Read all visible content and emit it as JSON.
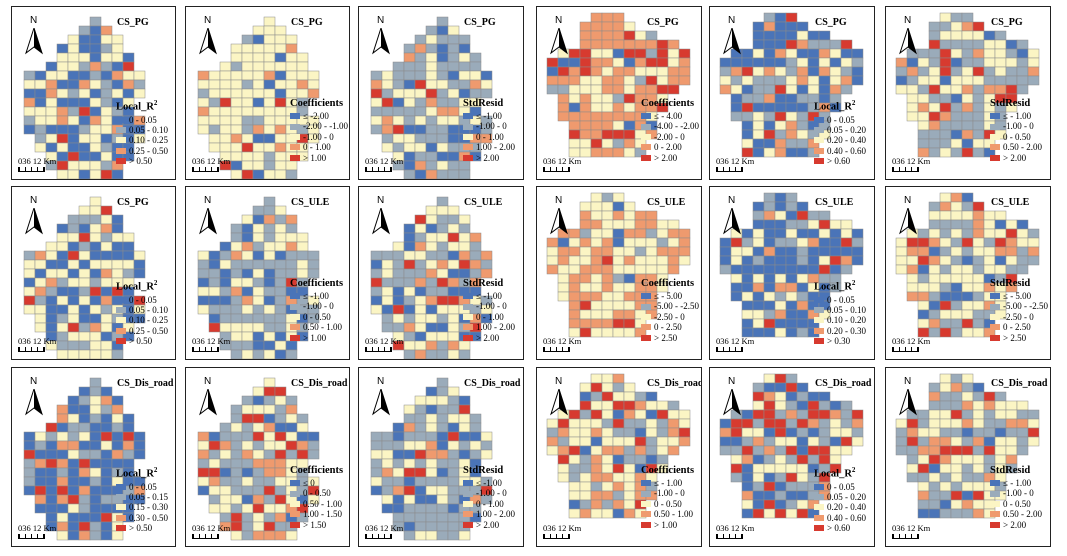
{
  "colors": {
    "dark_blue": "#4a74b8",
    "gray_blue": "#9aabba",
    "light_yellow": "#fbf5c4",
    "orange": "#ef9a6e",
    "red": "#d73a2f"
  },
  "scale_bar": "036 12 Km",
  "north_label": "N",
  "panels": [
    {
      "title": "CS_PG",
      "legend_title": "Local_R",
      "legend_sup": "2",
      "shape": "a",
      "items": [
        "0 - 0.05",
        "0.05 - 0.10",
        "0.10 - 0.25",
        "0.25 - 0.50",
        "> 0.50"
      ]
    },
    {
      "title": "CS_PG",
      "legend_title": "Coefficients",
      "legend_sup": "",
      "shape": "a",
      "items": [
        "≤ -2.00",
        "-2.00 - -1.00",
        "-1.00 - 0",
        "0 - 1.00",
        "> 1.00"
      ]
    },
    {
      "title": "CS_PG",
      "legend_title": "StdResid",
      "legend_sup": "",
      "shape": "a",
      "items": [
        "≤ -1.00",
        "-1.00 - 0",
        "0 - 1.00",
        "1.00 - 2.00",
        "> 2.00"
      ]
    },
    {
      "title": "CS_PG",
      "legend_title": "Coefficients",
      "legend_sup": "",
      "shape": "b",
      "items": [
        "≤ - 4.00",
        "-4.00 - -2.00",
        "-2.00 - 0",
        "0 - 2.00",
        "> 2.00"
      ]
    },
    {
      "title": "CS_PG",
      "legend_title": "Local_R",
      "legend_sup": "2",
      "shape": "b",
      "items": [
        "0 - 0.05",
        "0.05 - 0.20",
        "0.20 - 0.40",
        "0.40 - 0.60",
        "> 0.60"
      ]
    },
    {
      "title": "CS_PG",
      "legend_title": "StdResid",
      "legend_sup": "",
      "shape": "b",
      "items": [
        "≤ - 1.00",
        "-1.00 - 0",
        "0 - 0.50",
        "0.50 - 2.00",
        "> 2.00"
      ]
    },
    {
      "title": "CS_PG",
      "legend_title": "Local_R",
      "legend_sup": "2",
      "shape": "a",
      "items": [
        "0 - 0.05",
        "0.05 - 0.10",
        "0.10 - 0.25",
        "0.25 - 0.50",
        "> 0.50"
      ]
    },
    {
      "title": "CS_ULE",
      "legend_title": "Coefficients",
      "legend_sup": "",
      "shape": "a",
      "items": [
        "≤ -1.00",
        "-1.00 - 0",
        "0 - 0.50",
        "0.50 - 1.00",
        "> 1.00"
      ]
    },
    {
      "title": "CS_ULE",
      "legend_title": "StdResid",
      "legend_sup": "",
      "shape": "a",
      "items": [
        "≤ -1.00",
        "-1.00 - 0",
        "0 - 1.00",
        "1.00 - 2.00",
        "> 2.00"
      ]
    },
    {
      "title": "CS_ULE",
      "legend_title": "Coefficients",
      "legend_sup": "",
      "shape": "b",
      "items": [
        "≤ - 5.00",
        "-5.00 - -2.50",
        "-2.50 - 0",
        "0 - 2.50",
        "> 2.50"
      ]
    },
    {
      "title": "CS_ULE",
      "legend_title": "Local_R",
      "legend_sup": "2",
      "shape": "b",
      "items": [
        "0 - 0.05",
        "0.05 - 0.10",
        "0.10 - 0.20",
        "0.20 - 0.30",
        "> 0.30"
      ]
    },
    {
      "title": "CS_ULE",
      "legend_title": "StdResid",
      "legend_sup": "",
      "shape": "b",
      "items": [
        "≤ - 5.00",
        "-5.00 - -2.50",
        "-2.50 - 0",
        "0 - 2.50",
        "> 2.50"
      ]
    },
    {
      "title": "CS_Dis_road",
      "legend_title": "Local_R",
      "legend_sup": "2",
      "shape": "a",
      "items": [
        "0 - 0.05",
        "0.05 - 0.15",
        "0.15 - 0.30",
        "0.30 - 0.50",
        "> 0.50"
      ]
    },
    {
      "title": "CS_Dis_road",
      "legend_title": "Coefficients",
      "legend_sup": "",
      "shape": "a",
      "items": [
        "≤ 0",
        "0 - 0.50",
        "0.50 - 1.00",
        "1.00 - 1.50",
        "> 1.50"
      ]
    },
    {
      "title": "CS_Dis_road",
      "legend_title": "StdResid",
      "legend_sup": "",
      "shape": "a",
      "items": [
        "≤ -1.00",
        "-1.00 - 0",
        "0 - 1.00",
        "1.00 - 2.00",
        "> 2.00"
      ]
    },
    {
      "title": "CS_Dis_road",
      "legend_title": "Coefficients",
      "legend_sup": "",
      "shape": "b",
      "items": [
        "≤ - 1.00",
        "-1.00 - 0",
        "0 - 0.50",
        "0.50 - 1.00",
        "> 1.00"
      ]
    },
    {
      "title": "CS_Dis_road",
      "legend_title": "Local_R",
      "legend_sup": "2",
      "shape": "b",
      "items": [
        "0 - 0.05",
        "0.05 - 0.20",
        "0.20 - 0.40",
        "0.40 - 0.60",
        "> 0.60"
      ]
    },
    {
      "title": "CS_Dis_road",
      "legend_title": "StdResid",
      "legend_sup": "",
      "shape": "b",
      "items": [
        "≤ - 1.00",
        "-1.00 - 0",
        "0 - 0.50",
        "0.50 - 2.00",
        "> 2.00"
      ]
    }
  ]
}
